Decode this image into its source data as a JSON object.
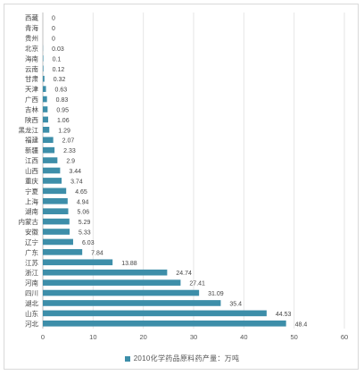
{
  "chart_data": {
    "type": "bar",
    "orientation": "horizontal",
    "categories": [
      "西藏",
      "青海",
      "贵州",
      "北京",
      "海南",
      "云南",
      "甘肃",
      "天津",
      "广西",
      "吉林",
      "陕西",
      "黑龙江",
      "福建",
      "新疆",
      "江西",
      "山西",
      "重庆",
      "宁夏",
      "上海",
      "湖南",
      "内蒙古",
      "安徽",
      "辽宁",
      "广东",
      "江苏",
      "浙江",
      "河南",
      "四川",
      "湖北",
      "山东",
      "河北"
    ],
    "series": [
      {
        "name": "2010化学药品原料药产量：万吨",
        "values": [
          0,
          0,
          0,
          0.03,
          0.1,
          0.12,
          0.32,
          0.63,
          0.83,
          0.95,
          1.06,
          1.29,
          2.07,
          2.33,
          2.9,
          3.44,
          3.74,
          4.65,
          4.94,
          5.06,
          5.29,
          5.33,
          6.03,
          7.84,
          13.88,
          24.74,
          27.41,
          31.09,
          35.4,
          44.53,
          48.4
        ],
        "value_labels": [
          "0",
          "0",
          "0",
          "0.03",
          "0.1",
          "0.12",
          "0.32",
          "0.63",
          "0.83",
          "0.95",
          "1.06",
          "1.29",
          "2.07",
          "2.33",
          "2.9",
          "3.44",
          "3.74",
          "4.65",
          "4.94",
          "5.06",
          "5.29",
          "5.33",
          "6.03",
          "7.84",
          "13.88",
          "24.74",
          "27.41",
          "31.09",
          "35.4",
          "44.53",
          "48.4"
        ]
      }
    ],
    "xlim": [
      0,
      60
    ],
    "xticks": [
      0,
      10,
      20,
      30,
      40,
      50,
      60
    ],
    "xlabel": "",
    "ylabel": "",
    "title": "",
    "grid": true,
    "legend_position": "bottom",
    "bar_color": "#3d8ea9"
  }
}
